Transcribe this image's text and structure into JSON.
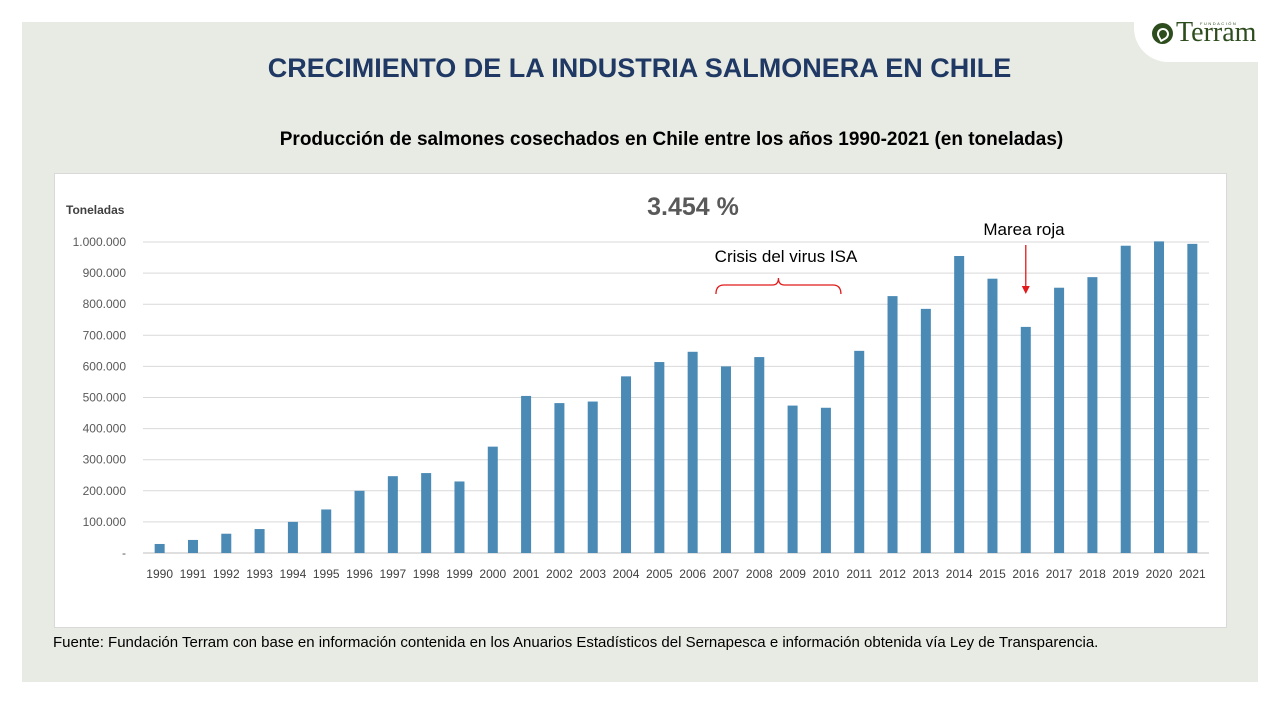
{
  "slide": {
    "title": "CRECIMIENTO DE LA INDUSTRIA SALMONERA EN CHILE",
    "source": "Fuente: Fundación Terram con base en información contenida en los Anuarios Estadísticos del Sernapesca e información obtenida vía Ley de Transparencia."
  },
  "logo": {
    "small_text": "FUNDACIÓN",
    "name": "Terram"
  },
  "colors": {
    "bar": "#4a8ab5",
    "title": "#1f3864",
    "annotation": "#e11b1b"
  },
  "chart_data": {
    "type": "bar",
    "title": "Producción de salmones cosechados en Chile entre los años 1990-2021 (en toneladas)",
    "ylabel": "Toneladas",
    "xlabel": "",
    "ylim": [
      0,
      1000000
    ],
    "grid": true,
    "yticks": [
      {
        "value": 0,
        "label": "-"
      },
      {
        "value": 100000,
        "label": "100.000"
      },
      {
        "value": 200000,
        "label": "200.000"
      },
      {
        "value": 300000,
        "label": "300.000"
      },
      {
        "value": 400000,
        "label": "400.000"
      },
      {
        "value": 500000,
        "label": "500.000"
      },
      {
        "value": 600000,
        "label": "600.000"
      },
      {
        "value": 700000,
        "label": "700.000"
      },
      {
        "value": 800000,
        "label": "800.000"
      },
      {
        "value": 900000,
        "label": "900.000"
      },
      {
        "value": 1000000,
        "label": "1.000.000"
      }
    ],
    "categories": [
      "1990",
      "1991",
      "1992",
      "1993",
      "1994",
      "1995",
      "1996",
      "1997",
      "1998",
      "1999",
      "2000",
      "2001",
      "2002",
      "2003",
      "2004",
      "2005",
      "2006",
      "2007",
      "2008",
      "2009",
      "2010",
      "2011",
      "2012",
      "2013",
      "2014",
      "2015",
      "2016",
      "2017",
      "2018",
      "2019",
      "2020",
      "2021"
    ],
    "values": [
      29000,
      42000,
      62000,
      77000,
      100000,
      140000,
      200000,
      247000,
      257000,
      230000,
      342000,
      505000,
      482000,
      487000,
      568000,
      614000,
      647000,
      600000,
      630000,
      474000,
      467000,
      650000,
      826000,
      785000,
      955000,
      882000,
      727000,
      853000,
      887000,
      988000,
      1002000,
      994000
    ],
    "annotations": [
      {
        "text": "3.454 %"
      },
      {
        "text": "Crisis del virus ISA",
        "from": "2007",
        "to": "2010"
      },
      {
        "text": "Marea roja",
        "year": "2016"
      }
    ]
  }
}
